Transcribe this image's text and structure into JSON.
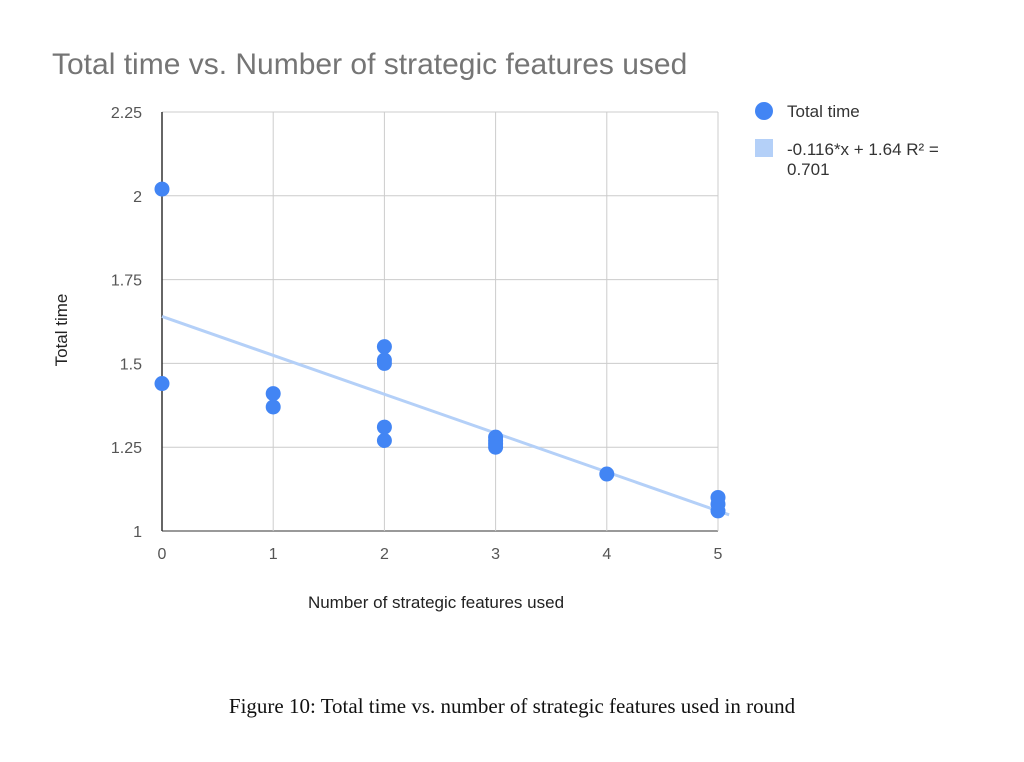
{
  "chart_data": {
    "type": "scatter",
    "title": "Total time vs. Number of strategic features used",
    "xlabel": "Number of strategic features used",
    "ylabel": "Total time",
    "xlim": [
      0,
      5
    ],
    "ylim": [
      1,
      2.25
    ],
    "x_ticks": [
      "0",
      "1",
      "2",
      "3",
      "4",
      "5"
    ],
    "y_ticks": [
      "1",
      "1.25",
      "1.5",
      "1.75",
      "2",
      "2.25"
    ],
    "grid": true,
    "legend_position": "right",
    "series": [
      {
        "name": "Total time",
        "color": "#4285f4",
        "points": [
          {
            "x": 0,
            "y": 2.02
          },
          {
            "x": 0,
            "y": 1.44
          },
          {
            "x": 1,
            "y": 1.41
          },
          {
            "x": 1,
            "y": 1.37
          },
          {
            "x": 2,
            "y": 1.55
          },
          {
            "x": 2,
            "y": 1.51
          },
          {
            "x": 2,
            "y": 1.5
          },
          {
            "x": 2,
            "y": 1.31
          },
          {
            "x": 2,
            "y": 1.27
          },
          {
            "x": 3,
            "y": 1.28
          },
          {
            "x": 3,
            "y": 1.27
          },
          {
            "x": 3,
            "y": 1.26
          },
          {
            "x": 3,
            "y": 1.25
          },
          {
            "x": 4,
            "y": 1.17
          },
          {
            "x": 5,
            "y": 1.1
          },
          {
            "x": 5,
            "y": 1.08
          },
          {
            "x": 5,
            "y": 1.06
          }
        ]
      }
    ],
    "trendline": {
      "label": "-0.116*x + 1.64 R² = 0.701",
      "label_lines": [
        "-0.116*x + 1.64 R² =",
        "0.701"
      ],
      "slope": -0.116,
      "intercept": 1.64,
      "color": "#b4d0f8"
    }
  },
  "caption": "Figure 10: Total time vs. number of strategic features used in round"
}
